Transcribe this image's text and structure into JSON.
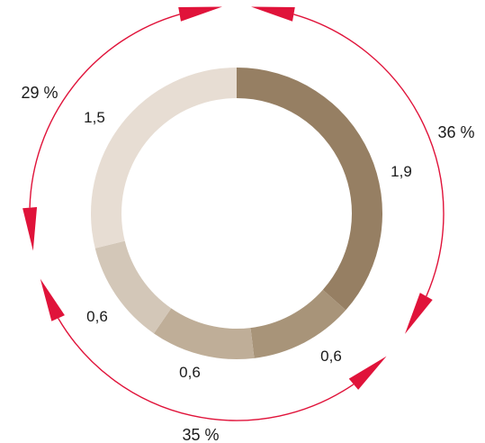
{
  "chart_data": {
    "type": "pie",
    "variant": "donut",
    "values": [
      1.9,
      0.6,
      0.6,
      0.6,
      1.5
    ],
    "value_labels": [
      "1,9",
      "0,6",
      "0,6",
      "0,6",
      "1,5"
    ],
    "colors": [
      "#967f63",
      "#a89479",
      "#bfae98",
      "#d3c7b8",
      "#e7ddd3"
    ],
    "groups": [
      {
        "label": "36 %",
        "share": 36,
        "slices": [
          0
        ]
      },
      {
        "label": "35 %",
        "share": 35,
        "slices": [
          1,
          2,
          3
        ]
      },
      {
        "label": "29 %",
        "share": 29,
        "slices": [
          4
        ]
      }
    ],
    "accent_color": "#e0133a"
  }
}
